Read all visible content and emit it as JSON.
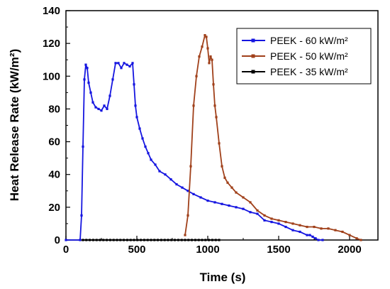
{
  "chart_data": {
    "type": "line",
    "title": "",
    "xlabel": "Time (s)",
    "ylabel": "Heat Release Rate (kW/m²)",
    "xlim": [
      0,
      2200
    ],
    "ylim": [
      0,
      140
    ],
    "x_ticks": [
      0,
      500,
      1000,
      1500,
      2000
    ],
    "y_ticks": [
      0,
      20,
      40,
      60,
      80,
      100,
      120,
      140
    ],
    "grid": false,
    "legend_position": "top-right",
    "series": [
      {
        "name": "PEEK - 60 kW/m²",
        "color": "#1515e0",
        "x": [
          0,
          100,
          110,
          120,
          130,
          140,
          150,
          160,
          175,
          190,
          210,
          230,
          250,
          270,
          290,
          310,
          330,
          350,
          370,
          390,
          410,
          430,
          450,
          470,
          480,
          490,
          500,
          520,
          540,
          560,
          580,
          600,
          630,
          660,
          700,
          740,
          780,
          820,
          860,
          900,
          950,
          1000,
          1050,
          1100,
          1150,
          1200,
          1250,
          1300,
          1350,
          1400,
          1450,
          1500,
          1550,
          1600,
          1650,
          1700,
          1720,
          1740,
          1760,
          1780,
          1810
        ],
        "y": [
          0,
          0,
          15,
          57,
          98,
          107,
          105,
          96,
          90,
          84,
          81,
          80,
          79,
          82,
          80,
          88,
          98,
          108,
          108,
          105,
          108,
          107,
          106,
          108,
          95,
          82,
          75,
          68,
          62,
          57,
          53,
          49,
          46,
          42,
          40,
          37,
          34,
          32,
          30,
          28,
          26,
          24,
          23,
          22,
          21,
          20,
          19,
          17,
          16,
          12,
          11,
          10,
          8,
          6,
          5,
          3,
          3,
          2,
          1,
          0,
          0
        ]
      },
      {
        "name": "PEEK - 50 kW/m²",
        "color": "#a0401a",
        "x": [
          840,
          860,
          880,
          900,
          920,
          940,
          960,
          980,
          990,
          1000,
          1010,
          1020,
          1030,
          1040,
          1050,
          1060,
          1080,
          1100,
          1120,
          1140,
          1170,
          1200,
          1250,
          1300,
          1350,
          1400,
          1450,
          1500,
          1550,
          1600,
          1650,
          1700,
          1750,
          1800,
          1850,
          1900,
          1950,
          2000,
          2050,
          2080
        ],
        "y": [
          3,
          15,
          45,
          82,
          100,
          112,
          118,
          125,
          124,
          117,
          108,
          112,
          110,
          95,
          82,
          75,
          59,
          45,
          38,
          35,
          32,
          29,
          26,
          23,
          18,
          15,
          13,
          12,
          11,
          10,
          9,
          8,
          8,
          7,
          7,
          6,
          5,
          3,
          1,
          0
        ]
      },
      {
        "name": "PEEK - 35 kW/m²",
        "color": "#000000",
        "x": [
          120,
          144,
          168,
          192,
          216,
          240,
          264,
          288,
          312,
          336,
          360,
          384,
          408,
          432,
          456,
          480,
          504,
          528,
          552,
          576,
          600,
          624,
          648,
          672,
          696,
          720,
          744,
          768,
          792,
          816,
          840,
          864,
          888,
          912,
          936,
          960,
          984,
          1008,
          1032,
          1056,
          1080
        ],
        "y": [
          0,
          0,
          0,
          0,
          0,
          0,
          0,
          0,
          0,
          0,
          0,
          0,
          0,
          0,
          0,
          0,
          0,
          0,
          0,
          0,
          0,
          0,
          0,
          0,
          0,
          0,
          0,
          0,
          0,
          0,
          0,
          0,
          0,
          0,
          0,
          0,
          0,
          0,
          0,
          0,
          0
        ]
      }
    ]
  }
}
